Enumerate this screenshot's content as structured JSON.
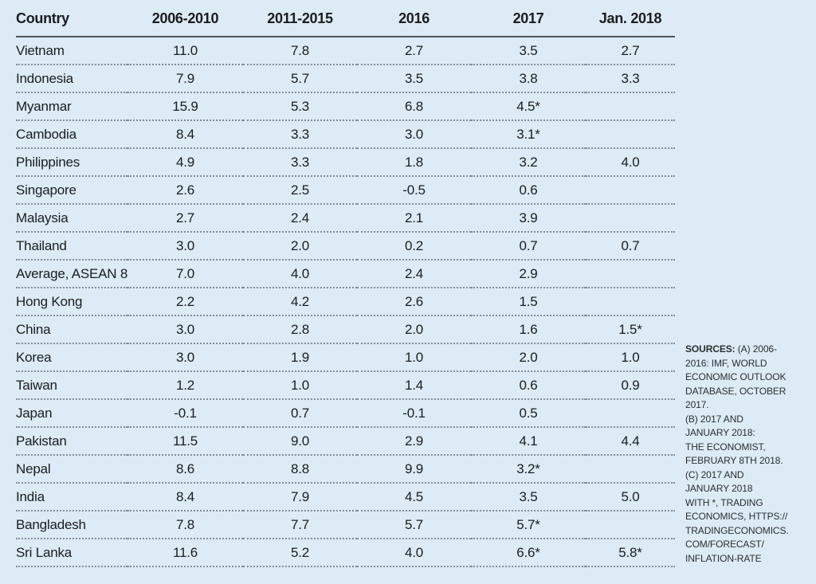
{
  "colors": {
    "background": "#dcebf6",
    "text": "#1c1c1c",
    "header_rule": "#4e5256",
    "row_dots": "#848c94"
  },
  "chart_data": {
    "type": "table",
    "columns": [
      "Country",
      "2006-2010",
      "2011-2015",
      "2016",
      "2017",
      "Jan. 2018"
    ],
    "rows": [
      [
        "Vietnam",
        "11.0",
        "7.8",
        "2.7",
        "3.5",
        "2.7"
      ],
      [
        "Indonesia",
        "7.9",
        "5.7",
        "3.5",
        "3.8",
        "3.3"
      ],
      [
        "Myanmar",
        "15.9",
        "5.3",
        "6.8",
        "4.5*",
        ""
      ],
      [
        "Cambodia",
        "8.4",
        "3.3",
        "3.0",
        "3.1*",
        ""
      ],
      [
        "Philippines",
        "4.9",
        "3.3",
        "1.8",
        "3.2",
        "4.0"
      ],
      [
        "Singapore",
        "2.6",
        "2.5",
        "-0.5",
        "0.6",
        ""
      ],
      [
        "Malaysia",
        "2.7",
        "2.4",
        "2.1",
        "3.9",
        ""
      ],
      [
        "Thailand",
        "3.0",
        "2.0",
        "0.2",
        "0.7",
        "0.7"
      ],
      [
        "Average, ASEAN 8",
        "7.0",
        "4.0",
        "2.4",
        "2.9",
        ""
      ],
      [
        "Hong Kong",
        "2.2",
        "4.2",
        "2.6",
        "1.5",
        ""
      ],
      [
        "China",
        "3.0",
        "2.8",
        "2.0",
        "1.6",
        "1.5*"
      ],
      [
        "Korea",
        "3.0",
        "1.9",
        "1.0",
        "2.0",
        "1.0"
      ],
      [
        "Taiwan",
        "1.2",
        "1.0",
        "1.4",
        "0.6",
        "0.9"
      ],
      [
        "Japan",
        "-0.1",
        "0.7",
        "-0.1",
        "0.5",
        ""
      ],
      [
        "Pakistan",
        "11.5",
        "9.0",
        "2.9",
        "4.1",
        "4.4"
      ],
      [
        "Nepal",
        "8.6",
        "8.8",
        "9.9",
        "3.2*",
        ""
      ],
      [
        "India",
        "8.4",
        "7.9",
        "4.5",
        "3.5",
        "5.0"
      ],
      [
        "Bangladesh",
        "7.8",
        "7.7",
        "5.7",
        "5.7*",
        ""
      ],
      [
        "Sri Lanka",
        "11.6",
        "5.2",
        "4.0",
        "6.6*",
        "5.8*"
      ]
    ]
  },
  "sources": {
    "label": "SOURCES:",
    "text": " (A) 2006-\n2016: IMF, WORLD\nECONOMIC OUTLOOK\nDATABASE, OCTOBER\n2017.\n(B) 2017 AND\nJANUARY 2018:\nTHE ECONOMIST,\nFEBRUARY 8TH 2018.\n(C) 2017 AND\nJANUARY 2018\nWITH *, TRADING\nECONOMICS, HTTPS://\nTRADINGECONOMICS.\nCOM/FORECAST/\nINFLATION-RATE"
  }
}
